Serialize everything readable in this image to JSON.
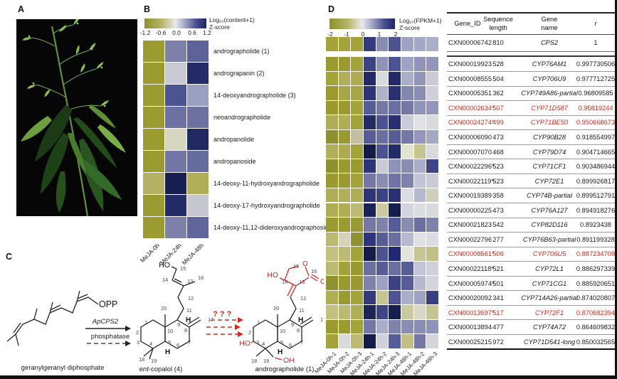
{
  "colors": {
    "highlight_red": "#d6281e",
    "olive": "#9a9a30",
    "navy": "#1f2566"
  },
  "panelA": {
    "label": "A"
  },
  "panelB": {
    "label": "B",
    "colorbar": {
      "title_line1": "Log₁₀(content+1)",
      "title_line2": "Z-score",
      "ticks": [
        "-1.2",
        "-0.6",
        "0.0",
        "0.6",
        "1.2"
      ]
    },
    "columns": [
      "MeJA-0h",
      "MeJA-24h",
      "MeJA-48h"
    ],
    "rows": [
      {
        "compound": "andrographolide (1)",
        "colors": [
          "#9b9b31",
          "#7d80a9",
          "#5d6399"
        ]
      },
      {
        "compound": "andrograpanin (2)",
        "colors": [
          "#9b9b31",
          "#c9cad3",
          "#232c67"
        ]
      },
      {
        "compound": "14-deoxyandrographolide (3)",
        "colors": [
          "#9b9b31",
          "#4b5390",
          "#9aa0c1"
        ]
      },
      {
        "compound": "neoandrographolide",
        "colors": [
          "#9b9b31",
          "#6c71a2",
          "#6c71a2"
        ]
      },
      {
        "compound": "andropanolide",
        "colors": [
          "#9b9b31",
          "#d7d6c1",
          "#202a60"
        ]
      },
      {
        "compound": "andropanoside",
        "colors": [
          "#9b9b31",
          "#7377a6",
          "#676c9e"
        ]
      },
      {
        "compound": "14-deoxy-11-hydroxyandrographolide",
        "colors": [
          "#b4b165",
          "#161f50",
          "#b1ae58"
        ]
      },
      {
        "compound": "14-deoxy-17-hydroxyandrographolide",
        "colors": [
          "#9b9b31",
          "#242c68",
          "#c6c7d0"
        ]
      },
      {
        "compound": "14-deoxy-11,12-dideroxyandrographoside",
        "colors": [
          "#9b9b31",
          "#7d80a9",
          "#60659b"
        ]
      }
    ]
  },
  "panelC": {
    "label": "C",
    "ggpp_caption": "geranylgeranyl diphosphate",
    "opp": "OPP",
    "enzyme": "ApCPS2",
    "enzyme2": "phosphatase",
    "qmarks": "? ? ?",
    "copalol_caption_italic": "ent",
    "copalol_caption_rest": "-copalol (4)",
    "andro_caption": "andrographolide (1)",
    "ho": "HO",
    "oh": "OH",
    "h": "H",
    "o": "O",
    "copalol_numbers": [
      "15",
      "14",
      "16",
      "13",
      "12",
      "11",
      "20",
      "9",
      "17",
      "8",
      "1",
      "10",
      "2",
      "3",
      "4",
      "5",
      "6",
      "7",
      "18",
      "19"
    ],
    "andro_numbers": [
      "15",
      "16",
      "14",
      "13",
      "12",
      "11",
      "20",
      "9",
      "17",
      "8",
      "1",
      "10",
      "2",
      "3",
      "4",
      "5",
      "6",
      "7",
      "18",
      "19"
    ]
  },
  "panelD": {
    "label": "D",
    "colorbar": {
      "title_line1": "Log₁₀(FPKM+1)",
      "title_line2": "Z-score",
      "ticks": [
        "-2",
        "-1",
        "0",
        "1",
        "2"
      ]
    },
    "columns": [
      "MeJA-0h-1",
      "MeJA-0h-2",
      "MeJA-0h-3",
      "MeJA-24h-1",
      "MeJA-24h-2",
      "MeJA-24h-3",
      "MeJA-48h-1",
      "MeJA-48h-2",
      "MeJA-48h-3"
    ],
    "headers": {
      "gene_id": "Gene_ID",
      "seq1": "Sequence",
      "seq2": "length",
      "gene1": "Gene",
      "gene2": "name",
      "r": "r"
    },
    "rows": [
      {
        "id": "CXN00006742",
        "length": "810",
        "name": "CPS2",
        "r": "1",
        "red": false,
        "colors": [
          "#a3a339",
          "#a3a339",
          "#a3a339",
          "#333a7e",
          "#8a8db2",
          "#4d5391",
          "#9fa2c2",
          "#a5a8c5",
          "#abaec9"
        ]
      },
      {
        "id": "CXN00019923",
        "length": "528",
        "name": "CYP76AM1",
        "r": "0.997730506",
        "red": false,
        "colors": [
          "#9a9a30",
          "#9a9a30",
          "#a3a339",
          "#3c4384",
          "#9093b8",
          "#4d5391",
          "#9fa2c2",
          "#9093b8",
          "#9396ba"
        ]
      },
      {
        "id": "CXN00008555",
        "length": "504",
        "name": "CYP706U9",
        "r": "0.977712725",
        "red": false,
        "colors": [
          "#a3a339",
          "#b2af5c",
          "#aeab52",
          "#232b66",
          "#d9dade",
          "#232b66",
          "#abaec9",
          "#9396ba",
          "#c9cbd9"
        ]
      },
      {
        "id": "CXN00005351",
        "length": "362",
        "name": "CYP749A86-partial",
        "r": "0.96809585",
        "red": false,
        "colors": [
          "#9a9a30",
          "#a8a747",
          "#a8a747",
          "#2d3576",
          "#b0b2cc",
          "#283070",
          "#8487ad",
          "#8a8db2",
          "#cfd0da"
        ]
      },
      {
        "id": "CXN00002634*",
        "length": "507",
        "name": "CYP71D587",
        "r": "0.95819244",
        "red": true,
        "colors": [
          "#9a9a30",
          "#9a9a30",
          "#a3a339",
          "#565d96",
          "#7578a5",
          "#6a6fa0",
          "#7578a5",
          "#9093b8",
          "#9396ba"
        ]
      },
      {
        "id": "CXN00024274*",
        "length": "499",
        "name": "CYP71BE50",
        "r": "0.950668673",
        "red": true,
        "colors": [
          "#b0ad57",
          "#b0ad57",
          "#a3a339",
          "#232b66",
          "#4d5391",
          "#283070",
          "#c9cbd9",
          "#e0e1e5",
          "#d9dade"
        ]
      },
      {
        "id": "CXN00006090",
        "length": "473",
        "name": "CYP90B28",
        "r": "0.918554997",
        "red": false,
        "colors": [
          "#8f9030",
          "#9a9a30",
          "#c2c0a0",
          "#565d96",
          "#6a6fa0",
          "#565d96",
          "#7578a5",
          "#9396ba",
          "#a5a8c5"
        ]
      },
      {
        "id": "CXN00007070",
        "length": "468",
        "name": "CYP79D74",
        "r": "0.904714665",
        "red": false,
        "colors": [
          "#b2af5c",
          "#aeab52",
          "#a3a339",
          "#141c4a",
          "#4d5391",
          "#232b66",
          "#e3e3d0",
          "#c6c490",
          "#d9dade"
        ]
      },
      {
        "id": "CXN00022296*",
        "length": "523",
        "name": "CYP71CF1",
        "r": "0.903486944",
        "red": false,
        "colors": [
          "#8f9030",
          "#9a9a30",
          "#9a9a30",
          "#2d3576",
          "#c9cbd9",
          "#9093b8",
          "#8a8db2",
          "#abaec9",
          "#3f4487"
        ]
      },
      {
        "id": "CXN00022119*",
        "length": "523",
        "name": "CYP72E1",
        "r": "0.899926817",
        "red": false,
        "colors": [
          "#9a9a30",
          "#9a9a30",
          "#a3a339",
          "#7578a5",
          "#8a8db2",
          "#6f74a4",
          "#7f82ab",
          "#c3c5d6",
          "#c9cbd9"
        ]
      },
      {
        "id": "CXN00019389",
        "length": "358",
        "name": "CYP74B-partial",
        "r": "0.899512791",
        "red": false,
        "colors": [
          "#b0ad57",
          "#b2af5c",
          "#b0ad57",
          "#2d3576",
          "#3c4384",
          "#283070",
          "#dcdde2",
          "#b7b9d0",
          "#cfceb8"
        ]
      },
      {
        "id": "CXN00000225",
        "length": "473",
        "name": "CYP76A127",
        "r": "0.894918276",
        "red": false,
        "colors": [
          "#b0ad57",
          "#b0ad57",
          "#bcb973",
          "#1c2457",
          "#cbc99e",
          "#161e4e",
          "#d4d5dc",
          "#dcdde2",
          "#d9dade"
        ]
      },
      {
        "id": "CXN00021823",
        "length": "542",
        "name": "CYP82D116",
        "r": "0.8923438",
        "red": false,
        "colors": [
          "#9a9a30",
          "#9a9a30",
          "#9a9a30",
          "#7578a5",
          "#7f82ab",
          "#565d96",
          "#8a8db2",
          "#6a6fa0",
          "#7f82ab"
        ]
      },
      {
        "id": "CXN00022796",
        "length": "277",
        "name": "CYP76B63-partial",
        "r": "0.891199328",
        "red": false,
        "colors": [
          "#bcb973",
          "#d4d3b8",
          "#8f9030",
          "#2d3583",
          "#565d96",
          "#6a6fa0",
          "#b7b9d0",
          "#e0e1e5",
          "#dcdde2"
        ]
      },
      {
        "id": "CXN00008561*",
        "length": "506",
        "name": "CYP706U5",
        "r": "0.887234708",
        "red": true,
        "colors": [
          "#c2c180",
          "#bcb973",
          "#a3a339",
          "#141c4a",
          "#4d5391",
          "#1f2870",
          "#e3e3e0",
          "#c6c490",
          "#c0bf85"
        ]
      },
      {
        "id": "CXN00022118*",
        "length": "521",
        "name": "CYP72L1",
        "r": "0.886297339",
        "red": false,
        "colors": [
          "#bcb973",
          "#a3a339",
          "#9a9a30",
          "#6a6fa0",
          "#565d96",
          "#6a6fa0",
          "#565d96",
          "#c3c5d6",
          "#cfd0da"
        ]
      },
      {
        "id": "CXN00005974*",
        "length": "501",
        "name": "CYP71CG1",
        "r": "0.885920651",
        "red": false,
        "colors": [
          "#8f9030",
          "#9a9a30",
          "#9a9a30",
          "#7f82ab",
          "#9ea1c1",
          "#3c4384",
          "#565d96",
          "#b7b9d0",
          "#d4d5dc"
        ]
      },
      {
        "id": "CXN00020092",
        "length": "341",
        "name": "CYP714A26-partial",
        "r": "0.874020807",
        "red": false,
        "colors": [
          "#b0ad57",
          "#9a9a30",
          "#a3a339",
          "#333a7e",
          "#c6c490",
          "#4d5391",
          "#abaec9",
          "#9fa2c2",
          "#39407f"
        ]
      },
      {
        "id": "CXN00013597*",
        "length": "517",
        "name": "CYP72F1",
        "r": "0.870682394",
        "red": true,
        "colors": [
          "#c2c180",
          "#bcb973",
          "#b0ad57",
          "#1c2457",
          "#3f4487",
          "#161e4e",
          "#cbc99e",
          "#d9d8c4",
          "#c6c490"
        ]
      },
      {
        "id": "CXN00013894",
        "length": "477",
        "name": "CYP74A72",
        "r": "0.864609832",
        "red": false,
        "colors": [
          "#9a9a30",
          "#9a9a30",
          "#a3a339",
          "#7578a5",
          "#abaec9",
          "#7f82ab",
          "#8a8db2",
          "#8a8db2",
          "#9093b8"
        ]
      },
      {
        "id": "CXN00025215",
        "length": "972",
        "name": "CYP71D541-long",
        "r": "0.850032565",
        "red": false,
        "colors": [
          "#a3a339",
          "#d9dade",
          "#bcb973",
          "#141c4a",
          "#cfd0da",
          "#565d96",
          "#c0bf85",
          "#7578a5",
          "#d4d5dc"
        ]
      }
    ]
  }
}
